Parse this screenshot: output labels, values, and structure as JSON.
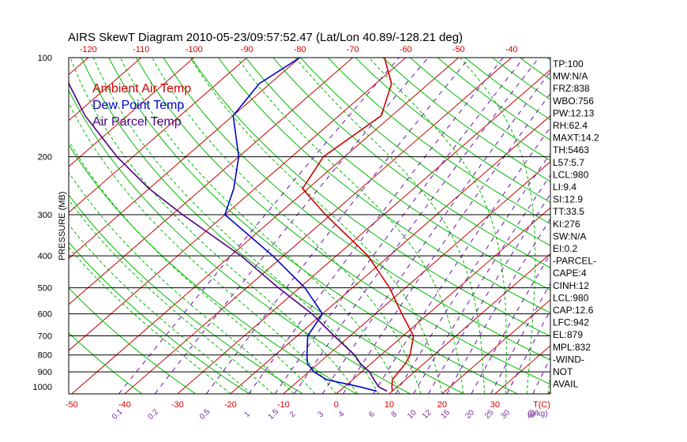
{
  "title": "AIRS SkewT Diagram 2010-05-23/09:57:52.47 (Lat/Lon 40.89/-128.21 deg)",
  "ylabel": "PRESSURE (MB)",
  "colors": {
    "ambient": "#cc0000",
    "dewpoint": "#0000cc",
    "parcel": "#4b0082",
    "isotherm": "#cc0000",
    "dry_adiabat": "#00bb00",
    "moist_adiabat": "#00bb00",
    "mixing_ratio": "#6a0dad",
    "isobar": "#000000"
  },
  "legend": [
    {
      "label": "Ambient Air Temp",
      "color": "#cc0000"
    },
    {
      "label": "Dew Point Temp",
      "color": "#0000cc"
    },
    {
      "label": "Air Parcel Temp",
      "color": "#4b0082"
    }
  ],
  "top_ticks": [
    "-120",
    "-110",
    "-100",
    "-90",
    "-80",
    "-70",
    "-60",
    "-50",
    "-40"
  ],
  "bottom_ticks": [
    "-50",
    "-40",
    "-30",
    "-20",
    "-10",
    "0",
    "10",
    "20",
    "30"
  ],
  "bottom_axis_label": "T(C)",
  "mixing_ratio_labels": [
    "0.1",
    "0.2",
    "0.5",
    "1",
    "1.5",
    "2",
    "3",
    "4",
    "6",
    "8",
    "10",
    "12",
    "15",
    "20",
    "25",
    "30",
    "40"
  ],
  "mixing_ratio_unit": "(g/kg)",
  "pressure_ticks": [
    "100",
    "200",
    "300",
    "400",
    "500",
    "600",
    "700",
    "800",
    "900",
    "1000"
  ],
  "indices": [
    "TP:100",
    "MW:N/A",
    "FRZ:838",
    "WBO:756",
    "PW:12.13",
    "RH:62.4",
    "MAXT:14.2",
    "TH:5463",
    "L57:5.7",
    "LCL:980",
    "LI:9.4",
    "SI:12.9",
    "TT:33.5",
    "KI:276",
    "SW:N/A",
    "EI:0.2",
    "-PARCEL-",
    "CAPE:4",
    "CINH:12",
    "LCL:980",
    "CAP:12.6",
    "LFC:942",
    "EL:879",
    "MPL:832",
    "-WIND-",
    "NOT",
    "AVAIL"
  ],
  "chart_data": {
    "type": "line",
    "yscale": "log",
    "ylim": [
      1050,
      100
    ],
    "series": [
      {
        "name": "Ambient Air Temp",
        "p": [
          1030,
          1000,
          950,
          900,
          850,
          800,
          700,
          600,
          500,
          400,
          300,
          250,
          200,
          150,
          120,
          100
        ],
        "t": [
          10,
          9,
          7.5,
          7,
          6.5,
          5.5,
          2,
          -5,
          -13,
          -24,
          -41,
          -51,
          -54,
          -52,
          -57,
          -64
        ]
      },
      {
        "name": "Dew Point Temp",
        "p": [
          1030,
          1000,
          950,
          900,
          850,
          800,
          700,
          600,
          500,
          400,
          300,
          250,
          200,
          150,
          120,
          100
        ],
        "t": [
          7,
          3,
          -5,
          -9,
          -12,
          -14,
          -18,
          -20,
          -29,
          -42,
          -60,
          -64,
          -70,
          -80,
          -82,
          -80
        ]
      },
      {
        "name": "Air Parcel Temp",
        "p": [
          1030,
          1000,
          950,
          900,
          850,
          800,
          700,
          600,
          500,
          400,
          300,
          250,
          200,
          150,
          120,
          100
        ],
        "t": [
          9,
          6.5,
          4,
          1.5,
          -2,
          -5,
          -13,
          -22,
          -34,
          -48,
          -68,
          -80,
          -93,
          -108,
          -118,
          -124
        ]
      }
    ]
  }
}
